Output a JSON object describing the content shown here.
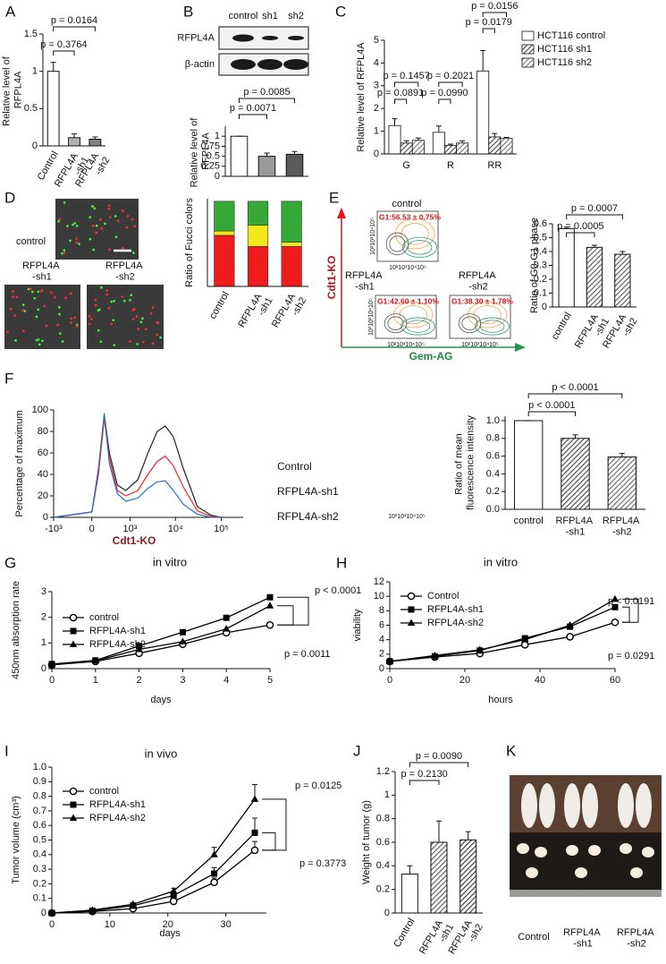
{
  "panel_labels": [
    "A",
    "B",
    "C",
    "D",
    "E",
    "F",
    "G",
    "H",
    "I",
    "J",
    "K"
  ],
  "blot": {
    "lanes": [
      "control",
      "sh1",
      "sh2"
    ],
    "rows": [
      "RFPL4A",
      "β-actin"
    ]
  },
  "fucci_images": {
    "labels": [
      "control",
      "RFPL4A -sh1",
      "RFPL4A -sh2"
    ]
  },
  "flow": {
    "axis_y": "Cdt1-KO",
    "axis_x": "Gem-AG",
    "tick_text": "10²10³10⁴10⁵",
    "plots": [
      {
        "label": "control",
        "gate": "G1:56.53 ± 0.75%"
      },
      {
        "label": "RFPL4A -sh1",
        "gate": "G1:42.60 ± 1.10%"
      },
      {
        "label": "RFPL4A -sh2",
        "gate": "G1:38.30 ± 1.78%"
      }
    ]
  },
  "mouse_photo": {
    "labels": [
      "Control",
      "RFPL4A -sh1",
      "RFPL4A -sh2"
    ]
  },
  "chart_data": [
    {
      "type": "bar",
      "ylabel": "Relative level of RFPL4A",
      "categories": [
        "Control",
        "RFPL4A -sh1",
        "RFPL4A -sh2"
      ],
      "values": [
        1.0,
        0.11,
        0.09
      ],
      "errors": [
        0.12,
        0.05,
        0.03
      ],
      "colors": [
        "#ffffff",
        "#b3b3b3",
        "#808080"
      ],
      "ylim": [
        0,
        1.5
      ],
      "yticks": [
        0,
        0.5,
        1,
        1.5
      ],
      "annotations": [
        "p = 0.0164",
        "p = 0.3764"
      ]
    },
    {
      "type": "bar",
      "ylabel": "Relative level of RFPL4A",
      "values": [
        1.0,
        0.5,
        0.55
      ],
      "errors": [
        0,
        0.08,
        0.07
      ],
      "colors": [
        "#ffffff",
        "#9a9a9a",
        "#5a5a5a"
      ],
      "ylim": [
        0,
        1.25
      ],
      "yticks": [
        0,
        0.25,
        0.5,
        0.75,
        1
      ],
      "annotations": [
        "p = 0.0085",
        "p = 0.0071"
      ]
    },
    {
      "type": "bar",
      "ylabel": "Relative level of RFPL4A",
      "categories": [
        "G",
        "R",
        "RR"
      ],
      "series": [
        {
          "name": "HCT116 control",
          "color": "#ffffff",
          "values": [
            1.25,
            0.95,
            3.65
          ],
          "errors": [
            0.3,
            0.28,
            0.9
          ]
        },
        {
          "name": "HCT116 sh1",
          "color": "#444444",
          "values": [
            0.48,
            0.38,
            0.75
          ],
          "errors": [
            0.1,
            0.05,
            0.15
          ]
        },
        {
          "name": "HCT116 sh2",
          "color": "#777777",
          "values": [
            0.6,
            0.48,
            0.68
          ],
          "errors": [
            0.1,
            0.1,
            0.05
          ]
        }
      ],
      "ylim": [
        0,
        5
      ],
      "yticks": [
        0,
        1,
        2,
        3,
        4,
        5
      ],
      "annotations": [
        "p = 0.1457",
        "p = 0.0891",
        "p = 0.2021",
        "p = 0.0990",
        "p = 0.0156",
        "p = 0.0179"
      ]
    },
    {
      "type": "stacked_bar",
      "ylabel": "Ratio of Fucci colors",
      "categories": [
        "control",
        "RFPL4A -sh1",
        "RFPL4A -sh2"
      ],
      "series": [
        {
          "color": "#ee1c1c",
          "values": [
            0.6,
            0.47,
            0.47
          ]
        },
        {
          "color": "#f2e81a",
          "values": [
            0.05,
            0.25,
            0.05
          ]
        },
        {
          "color": "#35a835",
          "values": [
            0.35,
            0.28,
            0.48
          ]
        }
      ],
      "ylim": [
        0,
        1.03
      ]
    },
    {
      "type": "bar",
      "ylabel": "Ratio of G0-G1 phase",
      "categories": [
        "control",
        "RFPL4A -sh1",
        "RFPL4A -sh2"
      ],
      "values": [
        0.565,
        0.43,
        0.38
      ],
      "errors": [
        0.01,
        0.015,
        0.02
      ],
      "colors": [
        "#ffffff",
        "#555555",
        "#555555"
      ],
      "ylim": [
        0,
        0.6
      ],
      "yticks": [
        0,
        0.1,
        0.2,
        0.3,
        0.4,
        0.5,
        0.6
      ],
      "annotations": [
        "p = 0.0007",
        "p = 0.0005"
      ]
    },
    {
      "type": "line",
      "ylabel": "Percentage of maximum",
      "xlabel": "Cdt1-KO",
      "xscale": "biexponential",
      "x": [
        -1000,
        0,
        100,
        200,
        300,
        500,
        800,
        1500,
        2500,
        4000,
        6000,
        9000,
        15000,
        30000,
        60000,
        100000
      ],
      "series": [
        {
          "name": "Control",
          "color": "#222222",
          "values": [
            0,
            5,
            40,
            95,
            60,
            30,
            25,
            35,
            60,
            80,
            85,
            75,
            45,
            10,
            2,
            0
          ]
        },
        {
          "name": "RFPL4A-sh1",
          "color": "#e8262a",
          "values": [
            0,
            5,
            40,
            92,
            55,
            25,
            20,
            25,
            40,
            52,
            57,
            48,
            28,
            6,
            1,
            0
          ]
        },
        {
          "name": "RFPL4A-sh2",
          "color": "#2b6fbf",
          "values": [
            0,
            5,
            45,
            97,
            50,
            22,
            15,
            18,
            27,
            33,
            34,
            25,
            12,
            3,
            0,
            0
          ]
        }
      ],
      "xlim": [
        -1000,
        300000
      ],
      "xticks": [
        {
          "value": -1000,
          "label": "-10³"
        },
        0,
        {
          "value": 1000,
          "label": "10³"
        },
        {
          "value": 10000,
          "label": "10⁴"
        },
        {
          "value": 100000,
          "label": "10⁵"
        }
      ],
      "ylim": [
        0,
        100
      ],
      "yticks": [
        0,
        20,
        40,
        60,
        80,
        100
      ]
    },
    {
      "type": "bar",
      "ylabel": "Ratio of mean fluorescence intensity",
      "categories": [
        "control",
        "RFPL4A -sh1",
        "RFPL4A -sh2"
      ],
      "values": [
        1.0,
        0.8,
        0.59
      ],
      "errors": [
        0,
        0.04,
        0.04
      ],
      "colors": [
        "#ffffff",
        "#444444",
        "#666666"
      ],
      "ylim": [
        0,
        1.05
      ],
      "yticks": [
        {
          "value": 0,
          "label": "0.0"
        },
        0.2,
        0.4,
        0.6,
        0.8,
        {
          "value": 1,
          "label": "1.0"
        }
      ],
      "annotations": [
        "p < 0.0001",
        "p < 0.0001"
      ]
    },
    {
      "type": "line",
      "title": "in vitro",
      "xlabel": "days",
      "ylabel": "450nm absorption rate",
      "x": [
        0,
        1,
        2,
        3,
        4,
        5
      ],
      "series": [
        {
          "name": "control",
          "color": "#000000",
          "marker": "circle-open",
          "values": [
            0.15,
            0.28,
            0.6,
            0.95,
            1.4,
            1.7
          ]
        },
        {
          "name": "RFPL4A-sh1",
          "color": "#000000",
          "marker": "square",
          "values": [
            0.18,
            0.32,
            0.88,
            1.42,
            1.98,
            2.78
          ]
        },
        {
          "name": "RFPL4A-sh2",
          "color": "#000000",
          "marker": "triangle",
          "values": [
            0.15,
            0.3,
            0.75,
            1.05,
            1.55,
            2.45
          ]
        }
      ],
      "xlim": [
        0,
        5
      ],
      "xticks": [
        0,
        1,
        2,
        3,
        4,
        5
      ],
      "ylim": [
        0,
        3
      ],
      "yticks": [
        0,
        1,
        2,
        3
      ],
      "annotations": [
        "p < 0.0001",
        "p = 0.0011"
      ]
    },
    {
      "type": "line",
      "title": "in vitro",
      "xlabel": "hours",
      "ylabel": "viability",
      "x": [
        0,
        12,
        24,
        36,
        48,
        60
      ],
      "series": [
        {
          "name": "Control",
          "color": "#000000",
          "marker": "circle-open",
          "values": [
            1,
            1.6,
            2.1,
            3.3,
            4.4,
            6.4
          ]
        },
        {
          "name": "RFPL4A-sh1",
          "color": "#000000",
          "marker": "square",
          "values": [
            1,
            1.7,
            2.5,
            4.2,
            5.8,
            8.5
          ]
        },
        {
          "name": "RFPL4A-sh2",
          "color": "#000000",
          "marker": "triangle",
          "values": [
            1,
            1.8,
            2.6,
            4.0,
            6.0,
            9.6
          ]
        }
      ],
      "xlim": [
        0,
        60
      ],
      "xticks": [
        0,
        20,
        40,
        60
      ],
      "ylim": [
        0,
        12
      ],
      "yticks": [
        0,
        2,
        4,
        6,
        8,
        10,
        12
      ],
      "annotations": [
        "p < 0.0191",
        "p = 0.0291"
      ]
    },
    {
      "type": "line",
      "title": "in vivo",
      "xlabel": "days",
      "ylabel": "Tumor volume (cm³)",
      "x": [
        0,
        7,
        14,
        21,
        28,
        35
      ],
      "series": [
        {
          "name": "control",
          "color": "#000000",
          "marker": "circle-open",
          "values": [
            0,
            0.01,
            0.03,
            0.08,
            0.21,
            0.43
          ],
          "errors": [
            0,
            0,
            0.01,
            0.01,
            0.03,
            0.06
          ]
        },
        {
          "name": "RFPL4A-sh1",
          "color": "#000000",
          "marker": "square",
          "values": [
            0,
            0.015,
            0.05,
            0.12,
            0.27,
            0.55
          ],
          "errors": [
            0,
            0,
            0.01,
            0.02,
            0.04,
            0.1
          ]
        },
        {
          "name": "RFPL4A-sh2",
          "color": "#000000",
          "marker": "triangle",
          "values": [
            0,
            0.02,
            0.06,
            0.15,
            0.4,
            0.78
          ],
          "errors": [
            0,
            0,
            0.01,
            0.02,
            0.05,
            0.1
          ]
        }
      ],
      "xlim": [
        0,
        37
      ],
      "xticks": [
        0,
        10,
        20,
        30
      ],
      "ylim": [
        0,
        1
      ],
      "yticks": [
        0,
        0.1,
        0.2,
        0.3,
        0.4,
        0.5,
        0.6,
        0.7,
        0.8,
        0.9,
        {
          "value": 1,
          "label": "1.0"
        }
      ],
      "annotations": [
        "p = 0.0125",
        "p = 0.3773"
      ]
    },
    {
      "type": "bar",
      "ylabel": "Weight of tumor (g)",
      "categories": [
        "Control",
        "RFPL4A -sh1",
        "RFPL4A -sh2"
      ],
      "values": [
        0.33,
        0.6,
        0.62
      ],
      "errors": [
        0.07,
        0.18,
        0.07
      ],
      "colors": [
        "#ffffff",
        "#555555",
        "#333333"
      ],
      "ylim": [
        0,
        1.2
      ],
      "yticks": [
        0,
        0.2,
        0.4,
        0.6,
        0.8,
        1,
        1.2
      ],
      "annotations": [
        "p = 0.0090",
        "p = 0.2130"
      ]
    }
  ]
}
